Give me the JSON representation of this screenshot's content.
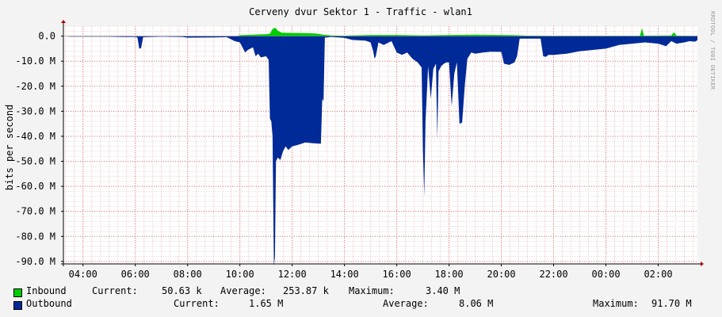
{
  "chart_data": {
    "type": "area",
    "title": "Cerveny dvur Sektor 1 - Traffic - wlan1",
    "ylabel": "bits per second",
    "watermark": "RRDTOOL / TOBI OETIKER",
    "ylim": [
      -91000000,
      4000000
    ],
    "xlim_hours": [
      3.25,
      27.5
    ],
    "y_ticks": [
      {
        "value": 0,
        "label": "0.0"
      },
      {
        "value": -10000000,
        "label": "-10.0 M"
      },
      {
        "value": -20000000,
        "label": "-20.0 M"
      },
      {
        "value": -30000000,
        "label": "-30.0 M"
      },
      {
        "value": -40000000,
        "label": "-40.0 M"
      },
      {
        "value": -50000000,
        "label": "-50.0 M"
      },
      {
        "value": -60000000,
        "label": "-60.0 M"
      },
      {
        "value": -70000000,
        "label": "-70.0 M"
      },
      {
        "value": -80000000,
        "label": "-80.0 M"
      },
      {
        "value": -90000000,
        "label": "-90.0 M"
      }
    ],
    "x_ticks": [
      {
        "value": 4,
        "label": "04:00"
      },
      {
        "value": 6,
        "label": "06:00"
      },
      {
        "value": 8,
        "label": "08:00"
      },
      {
        "value": 10,
        "label": "10:00"
      },
      {
        "value": 12,
        "label": "12:00"
      },
      {
        "value": 14,
        "label": "14:00"
      },
      {
        "value": 16,
        "label": "16:00"
      },
      {
        "value": 18,
        "label": "18:00"
      },
      {
        "value": 20,
        "label": "20:00"
      },
      {
        "value": 22,
        "label": "22:00"
      },
      {
        "value": 24,
        "label": "00:00"
      },
      {
        "value": 26,
        "label": "02:00"
      }
    ],
    "series": [
      {
        "name": "Inbound",
        "color": "#00cc00",
        "stats": {
          "current": "50.63 k",
          "average": "253.87 k",
          "maximum": "3.40 M"
        },
        "points": [
          [
            3.3,
            0
          ],
          [
            9.9,
            0
          ],
          [
            10.0,
            0.4
          ],
          [
            10.5,
            0.6
          ],
          [
            11.0,
            0.8
          ],
          [
            11.15,
            1.0
          ],
          [
            11.25,
            2.9
          ],
          [
            11.35,
            3.4
          ],
          [
            11.45,
            2.2
          ],
          [
            11.6,
            1.4
          ],
          [
            12.0,
            1.3
          ],
          [
            12.5,
            1.2
          ],
          [
            12.9,
            1.1
          ],
          [
            13.2,
            0.6
          ],
          [
            13.5,
            0.3
          ],
          [
            14.0,
            0.2
          ],
          [
            15.0,
            0.5
          ],
          [
            16.0,
            0.5
          ],
          [
            17.0,
            0.3
          ],
          [
            18.0,
            0.5
          ],
          [
            19.0,
            0.6
          ],
          [
            20.0,
            0.5
          ],
          [
            20.5,
            0.4
          ],
          [
            21.0,
            0.2
          ],
          [
            22.0,
            0.1
          ],
          [
            24.0,
            0.1
          ],
          [
            25.3,
            0.1
          ],
          [
            25.38,
            3.2
          ],
          [
            25.45,
            0.2
          ],
          [
            26.5,
            0.3
          ],
          [
            26.6,
            1.6
          ],
          [
            26.7,
            0.2
          ],
          [
            27.5,
            0.1
          ]
        ]
      },
      {
        "name": "Outbound",
        "color": "#002a97",
        "stats": {
          "current": "1.65 M",
          "average": "8.06 M",
          "maximum": "91.70 M"
        },
        "points": [
          [
            3.3,
            0
          ],
          [
            3.5,
            -0.2
          ],
          [
            5.0,
            -0.2
          ],
          [
            5.5,
            -0.3
          ],
          [
            6.0,
            -0.3
          ],
          [
            6.08,
            -0.5
          ],
          [
            6.15,
            -5.0
          ],
          [
            6.22,
            -4.8
          ],
          [
            6.3,
            -0.4
          ],
          [
            7.0,
            -0.2
          ],
          [
            7.8,
            -0.3
          ],
          [
            8.0,
            -0.6
          ],
          [
            9.0,
            -0.5
          ],
          [
            9.5,
            -0.4
          ],
          [
            9.8,
            -2.0
          ],
          [
            10.0,
            -2.5
          ],
          [
            10.1,
            -4.5
          ],
          [
            10.2,
            -6.5
          ],
          [
            10.3,
            -5.5
          ],
          [
            10.5,
            -4.5
          ],
          [
            10.6,
            -8.0
          ],
          [
            10.7,
            -7.0
          ],
          [
            10.8,
            -8.5
          ],
          [
            11.0,
            -8.0
          ],
          [
            11.1,
            -9.5
          ],
          [
            11.15,
            -33.0
          ],
          [
            11.2,
            -34.0
          ],
          [
            11.25,
            -40.0
          ],
          [
            11.3,
            -91.7
          ],
          [
            11.34,
            -88.0
          ],
          [
            11.38,
            -50.0
          ],
          [
            11.45,
            -48.5
          ],
          [
            11.55,
            -49.5
          ],
          [
            11.65,
            -46.0
          ],
          [
            11.75,
            -44.0
          ],
          [
            11.85,
            -45.5
          ],
          [
            12.0,
            -44.0
          ],
          [
            12.2,
            -43.5
          ],
          [
            12.5,
            -42.5
          ],
          [
            12.8,
            -42.8
          ],
          [
            13.1,
            -43.0
          ],
          [
            13.15,
            -25.0
          ],
          [
            13.2,
            -26.0
          ],
          [
            13.25,
            -0.6
          ],
          [
            13.5,
            -0.3
          ],
          [
            14.0,
            -0.7
          ],
          [
            14.3,
            -1.5
          ],
          [
            14.8,
            -1.8
          ],
          [
            15.0,
            -2.5
          ],
          [
            15.1,
            -6.0
          ],
          [
            15.15,
            -9.0
          ],
          [
            15.2,
            -8.0
          ],
          [
            15.3,
            -2.5
          ],
          [
            15.5,
            -3.5
          ],
          [
            15.8,
            -2.0
          ],
          [
            16.0,
            -6.5
          ],
          [
            16.2,
            -7.5
          ],
          [
            16.4,
            -6.5
          ],
          [
            16.6,
            -9.0
          ],
          [
            16.8,
            -10.5
          ],
          [
            16.95,
            -12.5
          ],
          [
            17.0,
            -45.0
          ],
          [
            17.05,
            -64.0
          ],
          [
            17.1,
            -34.0
          ],
          [
            17.2,
            -12.0
          ],
          [
            17.3,
            -25.0
          ],
          [
            17.4,
            -13.0
          ],
          [
            17.5,
            -11.0
          ],
          [
            17.55,
            -41.0
          ],
          [
            17.6,
            -14.0
          ],
          [
            17.7,
            -12.0
          ],
          [
            17.8,
            -11.0
          ],
          [
            17.9,
            -10.5
          ],
          [
            18.0,
            -10.5
          ],
          [
            18.1,
            -28.0
          ],
          [
            18.2,
            -15.0
          ],
          [
            18.3,
            -10.5
          ],
          [
            18.4,
            -35.0
          ],
          [
            18.5,
            -34.5
          ],
          [
            18.6,
            -20.0
          ],
          [
            18.7,
            -9.0
          ],
          [
            18.85,
            -6.5
          ],
          [
            19.0,
            -7.0
          ],
          [
            19.3,
            -6.5
          ],
          [
            19.6,
            -6.2
          ],
          [
            20.0,
            -6.3
          ],
          [
            20.1,
            -11.0
          ],
          [
            20.3,
            -11.5
          ],
          [
            20.5,
            -10.5
          ],
          [
            20.6,
            -8.0
          ],
          [
            20.7,
            -1.0
          ],
          [
            21.5,
            -1.0
          ],
          [
            21.6,
            -8.0
          ],
          [
            21.7,
            -8.3
          ],
          [
            21.8,
            -7.5
          ],
          [
            22.0,
            -7.5
          ],
          [
            22.5,
            -7.0
          ],
          [
            23.0,
            -6.0
          ],
          [
            23.5,
            -5.5
          ],
          [
            24.0,
            -5.0
          ],
          [
            24.5,
            -3.5
          ],
          [
            25.0,
            -3.0
          ],
          [
            25.5,
            -2.5
          ],
          [
            26.0,
            -3.0
          ],
          [
            26.3,
            -4.0
          ],
          [
            26.5,
            -2.0
          ],
          [
            26.7,
            -3.0
          ],
          [
            27.0,
            -2.5
          ],
          [
            27.2,
            -2.0
          ],
          [
            27.4,
            -2.2
          ],
          [
            27.5,
            -1.65
          ]
        ]
      }
    ]
  },
  "legend": {
    "inbound": {
      "name": "Inbound",
      "current_label": "Current:",
      "current": "50.63 k",
      "average_label": "Average:",
      "average": "253.87 k",
      "maximum_label": "Maximum:",
      "maximum": "3.40 M"
    },
    "outbound": {
      "name": "Outbound",
      "current_label": "Current:",
      "current": "1.65 M",
      "average_label": "Average:",
      "average": "8.06 M",
      "maximum_label": "Maximum:",
      "maximum": "91.70 M"
    }
  }
}
